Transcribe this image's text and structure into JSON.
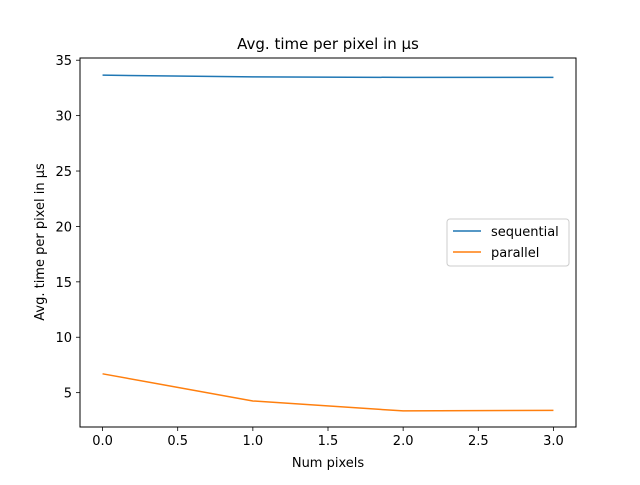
{
  "chart_data": {
    "type": "line",
    "title": "Avg. time per pixel in µs",
    "xlabel": "Num pixels",
    "ylabel": "Avg. time per pixel in µs",
    "x": [
      0,
      1,
      2,
      3
    ],
    "xlim": [
      -0.15,
      3.15
    ],
    "ylim": [
      1.9,
      35.2
    ],
    "xticks": [
      "0.0",
      "0.5",
      "1.0",
      "1.5",
      "2.0",
      "2.5",
      "3.0"
    ],
    "yticks": [
      "5",
      "10",
      "15",
      "20",
      "25",
      "30",
      "35"
    ],
    "series": [
      {
        "name": "sequential",
        "color": "#1f77b4",
        "values": [
          33.65,
          33.5,
          33.45,
          33.45
        ]
      },
      {
        "name": "parallel",
        "color": "#ff7f0e",
        "values": [
          6.7,
          4.25,
          3.35,
          3.4
        ]
      }
    ],
    "legend": "center-right",
    "grid": false
  }
}
